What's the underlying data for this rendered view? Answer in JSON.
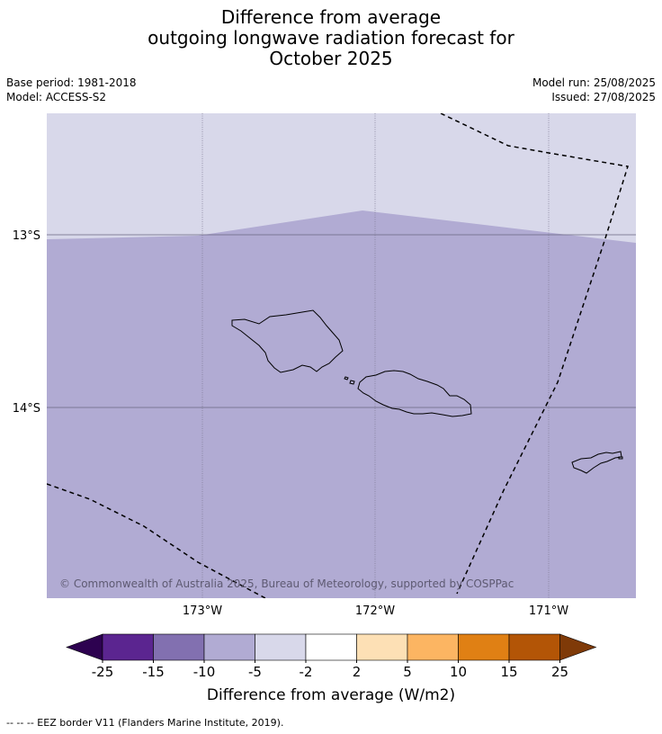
{
  "title": {
    "line1": "Difference from average",
    "line2": "outgoing longwave radiation forecast for",
    "line3": "October 2025"
  },
  "meta": {
    "base_period": "Base period: 1981-2018",
    "model": "Model: ACCESS-S2",
    "model_run": "Model run: 25/08/2025",
    "issued": "Issued: 27/08/2025"
  },
  "map": {
    "lat_labels": [
      "13°S",
      "14°S"
    ],
    "lon_labels": [
      "173°W",
      "172°W",
      "171°W"
    ],
    "copyright": "© Commonwealth of Australia 2025, Bureau of Meteorology, supported by COSPPac",
    "regions": [
      {
        "name": "upper-band",
        "category": "-5 to -2",
        "color": "#d8d8ea"
      },
      {
        "name": "lower-band",
        "category": "-10 to -5",
        "color": "#b1abd3"
      }
    ]
  },
  "colorbar": {
    "ticks": [
      "-25",
      "-15",
      "-10",
      "-5",
      "-2",
      "2",
      "5",
      "10",
      "15",
      "25"
    ],
    "colors": [
      "#5b2590",
      "#8270b0",
      "#b1abd3",
      "#d8d8ea",
      "#ffffff",
      "#fde0b5",
      "#fcb562",
      "#e08014",
      "#b35506"
    ],
    "low_extend_color": "#2d0250",
    "high_extend_color": "#7f3a08",
    "label": "Difference from average (W/m2)"
  },
  "footnote": "--  --  -- EEZ border V11 (Flanders Marine Institute, 2019)."
}
